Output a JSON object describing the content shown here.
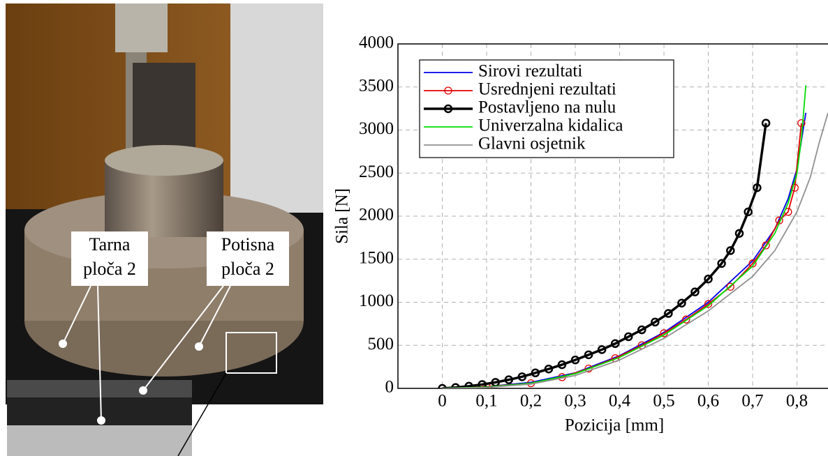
{
  "photo": {
    "labels": [
      [
        "Tarna",
        "ploča 2"
      ],
      [
        "Potisna",
        "ploča 2"
      ]
    ]
  },
  "chart_data": {
    "type": "line",
    "xlabel": "Pozicija [mm]",
    "ylabel": "Sila [N]",
    "xlim": [
      -0.1,
      0.87
    ],
    "ylim": [
      0,
      4000
    ],
    "xticks": [
      0,
      {
        "value": 0.1,
        "label": "0,1"
      },
      {
        "value": 0.2,
        "label": "0,2"
      },
      {
        "value": 0.3,
        "label": "0,3"
      },
      {
        "value": 0.4,
        "label": "0,4"
      },
      {
        "value": 0.5,
        "label": "0,5"
      },
      {
        "value": 0.6,
        "label": "0,6"
      },
      {
        "value": 0.7,
        "label": "0,7"
      },
      {
        "value": 0.8,
        "label": "0,8"
      }
    ],
    "yticks": [
      0,
      500,
      1000,
      1500,
      2000,
      2500,
      3000,
      3500,
      4000
    ],
    "grid": true,
    "legend": "upper left",
    "series": [
      {
        "name": "Sirovi rezultati",
        "color": "#0000ee",
        "marker": "none",
        "x": [
          0,
          0.1,
          0.2,
          0.3,
          0.4,
          0.5,
          0.6,
          0.7,
          0.75,
          0.78,
          0.8,
          0.82
        ],
        "values": [
          0,
          20,
          70,
          180,
          380,
          650,
          1000,
          1480,
          1850,
          2200,
          2550,
          3200
        ]
      },
      {
        "name": "Usrednjeni rezultati",
        "color": "#e00000",
        "marker": "circle",
        "x": [
          0,
          0.1,
          0.2,
          0.27,
          0.33,
          0.39,
          0.45,
          0.5,
          0.55,
          0.6,
          0.65,
          0.7,
          0.73,
          0.76,
          0.78,
          0.795,
          0.81
        ],
        "values": [
          0,
          20,
          60,
          130,
          230,
          350,
          500,
          640,
          800,
          980,
          1180,
          1450,
          1660,
          1950,
          2050,
          2330,
          3080
        ]
      },
      {
        "name": "Postavljeno na nulu",
        "color": "#000000",
        "marker": "circle",
        "bold": true,
        "x": [
          0,
          0.03,
          0.06,
          0.09,
          0.12,
          0.15,
          0.18,
          0.21,
          0.24,
          0.27,
          0.3,
          0.33,
          0.36,
          0.39,
          0.42,
          0.45,
          0.48,
          0.51,
          0.54,
          0.57,
          0.6,
          0.63,
          0.65,
          0.67,
          0.69,
          0.71,
          0.73
        ],
        "values": [
          0,
          10,
          25,
          45,
          70,
          100,
          135,
          180,
          225,
          275,
          330,
          390,
          450,
          520,
          600,
          680,
          770,
          870,
          990,
          1120,
          1270,
          1450,
          1600,
          1800,
          2050,
          2330,
          3080
        ]
      },
      {
        "name": "Univerzalna kidalica",
        "color": "#00dd00",
        "marker": "none",
        "x": [
          0,
          0.1,
          0.2,
          0.3,
          0.4,
          0.5,
          0.6,
          0.7,
          0.75,
          0.78,
          0.8,
          0.81,
          0.82
        ],
        "values": [
          0,
          15,
          60,
          170,
          360,
          620,
          960,
          1420,
          1800,
          2150,
          2500,
          2900,
          3520
        ]
      },
      {
        "name": "Glavni osjetnik",
        "color": "#909090",
        "marker": "none",
        "x": [
          0,
          0.1,
          0.2,
          0.3,
          0.4,
          0.5,
          0.6,
          0.7,
          0.75,
          0.8,
          0.83,
          0.85,
          0.87
        ],
        "values": [
          0,
          10,
          50,
          150,
          330,
          580,
          900,
          1300,
          1600,
          2050,
          2450,
          2850,
          3200
        ]
      }
    ]
  }
}
